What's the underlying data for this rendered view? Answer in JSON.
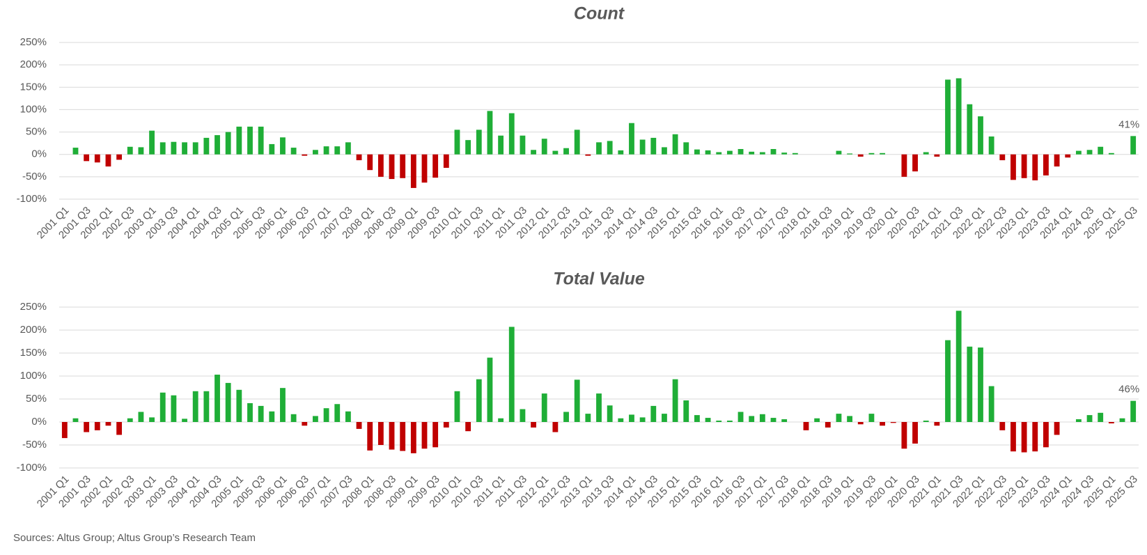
{
  "chart_data": [
    {
      "type": "bar",
      "title": "Count",
      "categories": [
        "2001 Q1",
        null,
        "2001 Q3",
        null,
        "2002 Q1",
        null,
        "2002 Q3",
        null,
        "2003 Q1",
        null,
        "2003 Q3",
        null,
        "2004 Q1",
        null,
        "2004 Q3",
        null,
        "2005 Q1",
        null,
        "2005 Q3",
        null,
        "2006 Q1",
        null,
        "2006 Q3",
        null,
        "2007 Q1",
        null,
        "2007 Q3",
        null,
        "2008 Q1",
        null,
        "2008 Q3",
        null,
        "2009 Q1",
        null,
        "2009 Q3",
        null,
        "2010 Q1",
        null,
        "2010 Q3",
        null,
        "2011 Q1",
        null,
        "2011 Q3",
        null,
        "2012 Q1",
        null,
        "2012 Q3",
        null,
        "2013 Q1",
        null,
        "2013 Q3",
        null,
        "2014 Q1",
        null,
        "2014 Q3",
        null,
        "2015 Q1",
        null,
        "2015 Q3",
        null,
        "2016 Q1",
        null,
        "2016 Q3",
        null,
        "2017 Q1",
        null,
        "2017 Q3",
        null,
        "2018 Q1",
        null,
        "2018 Q3",
        null,
        "2019 Q1",
        null,
        "2019 Q3",
        null,
        "2020 Q1",
        null,
        "2020 Q3",
        null,
        "2021 Q1",
        null,
        "2021 Q3",
        null,
        "2022 Q1",
        null,
        "2022 Q3",
        null,
        "2023 Q1",
        null,
        "2023 Q3",
        null,
        "2024 Q1",
        null,
        "2024 Q3",
        null,
        "2025 Q1",
        null,
        "2025 Q3"
      ],
      "values": [
        0,
        15,
        -15,
        -18,
        -27,
        -12,
        17,
        16,
        53,
        27,
        28,
        27,
        27,
        37,
        43,
        50,
        62,
        62,
        62,
        23,
        38,
        15,
        -3,
        10,
        18,
        18,
        27,
        -13,
        -35,
        -50,
        -55,
        -53,
        -75,
        -63,
        -52,
        -30,
        55,
        32,
        55,
        97,
        42,
        92,
        42,
        10,
        35,
        8,
        14,
        55,
        -3,
        27,
        30,
        9,
        70,
        33,
        37,
        16,
        45,
        27,
        11,
        9,
        5,
        8,
        12,
        6,
        5,
        12,
        4,
        3,
        0,
        0,
        0,
        8,
        2,
        -5,
        3,
        3,
        0,
        -50,
        -38,
        5,
        -5,
        167,
        170,
        112,
        85,
        40,
        -13,
        -57,
        -53,
        -58,
        -47,
        -27,
        -7,
        8,
        10,
        17,
        3,
        0,
        41
      ],
      "value_labels": [
        null,
        null,
        null,
        null,
        null,
        null,
        null,
        null,
        null,
        null,
        null,
        null,
        null,
        null,
        null,
        null,
        null,
        null,
        null,
        null,
        null,
        null,
        null,
        null,
        null,
        null,
        null,
        null,
        null,
        null,
        null,
        null,
        null,
        null,
        null,
        null,
        null,
        null,
        null,
        null,
        null,
        null,
        null,
        null,
        null,
        null,
        null,
        null,
        null,
        null,
        null,
        null,
        null,
        null,
        null,
        null,
        null,
        null,
        null,
        null,
        null,
        null,
        null,
        null,
        null,
        null,
        null,
        null,
        null,
        null,
        null,
        null,
        null,
        null,
        null,
        null,
        null,
        null,
        null,
        null,
        null,
        null,
        null,
        null,
        null,
        null,
        null,
        null,
        null,
        null,
        null,
        null,
        null,
        null,
        null,
        null,
        null,
        null,
        "41%"
      ],
      "positive_color": "#1fae37",
      "negative_color": "#c00000",
      "ylim": [
        -100,
        250
      ],
      "yticks": [
        {
          "value": -100,
          "label": "-100%"
        },
        {
          "value": -50,
          "label": "-50%"
        },
        {
          "value": 0,
          "label": "0%"
        },
        {
          "value": 50,
          "label": "50%"
        },
        {
          "value": 100,
          "label": "100%"
        },
        {
          "value": 150,
          "label": "150%"
        },
        {
          "value": 200,
          "label": "200%"
        },
        {
          "value": 250,
          "label": "250%"
        }
      ],
      "grid": true
    },
    {
      "type": "bar",
      "title": "Total Value",
      "categories": [
        "2001 Q1",
        null,
        "2001 Q3",
        null,
        "2002 Q1",
        null,
        "2002 Q3",
        null,
        "2003 Q1",
        null,
        "2003 Q3",
        null,
        "2004 Q1",
        null,
        "2004 Q3",
        null,
        "2005 Q1",
        null,
        "2005 Q3",
        null,
        "2006 Q1",
        null,
        "2006 Q3",
        null,
        "2007 Q1",
        null,
        "2007 Q3",
        null,
        "2008 Q1",
        null,
        "2008 Q3",
        null,
        "2009 Q1",
        null,
        "2009 Q3",
        null,
        "2010 Q1",
        null,
        "2010 Q3",
        null,
        "2011 Q1",
        null,
        "2011 Q3",
        null,
        "2012 Q1",
        null,
        "2012 Q3",
        null,
        "2013 Q1",
        null,
        "2013 Q3",
        null,
        "2014 Q1",
        null,
        "2014 Q3",
        null,
        "2015 Q1",
        null,
        "2015 Q3",
        null,
        "2016 Q1",
        null,
        "2016 Q3",
        null,
        "2017 Q1",
        null,
        "2017 Q3",
        null,
        "2018 Q1",
        null,
        "2018 Q3",
        null,
        "2019 Q1",
        null,
        "2019 Q3",
        null,
        "2020 Q1",
        null,
        "2020 Q3",
        null,
        "2021 Q1",
        null,
        "2021 Q3",
        null,
        "2022 Q1",
        null,
        "2022 Q3",
        null,
        "2023 Q1",
        null,
        "2023 Q3",
        null,
        "2024 Q1",
        null,
        "2024 Q3",
        null,
        "2025 Q1",
        null,
        "2025 Q3"
      ],
      "values": [
        -35,
        8,
        -22,
        -18,
        -8,
        -28,
        8,
        22,
        10,
        64,
        58,
        7,
        67,
        67,
        103,
        85,
        70,
        41,
        35,
        23,
        74,
        17,
        -8,
        13,
        30,
        39,
        23,
        -15,
        -62,
        -50,
        -60,
        -63,
        -68,
        -58,
        -55,
        -12,
        67,
        -20,
        93,
        140,
        8,
        207,
        28,
        -12,
        62,
        -22,
        22,
        92,
        18,
        62,
        36,
        8,
        16,
        10,
        35,
        18,
        93,
        47,
        15,
        9,
        3,
        3,
        22,
        13,
        17,
        9,
        6,
        0,
        -18,
        8,
        -12,
        18,
        13,
        -5,
        18,
        -8,
        -2,
        -58,
        -47,
        3,
        -8,
        178,
        242,
        164,
        162,
        78,
        -18,
        -64,
        -66,
        -64,
        -55,
        -28,
        0,
        6,
        15,
        20,
        -3,
        8,
        46
      ],
      "value_labels": [
        null,
        null,
        null,
        null,
        null,
        null,
        null,
        null,
        null,
        null,
        null,
        null,
        null,
        null,
        null,
        null,
        null,
        null,
        null,
        null,
        null,
        null,
        null,
        null,
        null,
        null,
        null,
        null,
        null,
        null,
        null,
        null,
        null,
        null,
        null,
        null,
        null,
        null,
        null,
        null,
        null,
        null,
        null,
        null,
        null,
        null,
        null,
        null,
        null,
        null,
        null,
        null,
        null,
        null,
        null,
        null,
        null,
        null,
        null,
        null,
        null,
        null,
        null,
        null,
        null,
        null,
        null,
        null,
        null,
        null,
        null,
        null,
        null,
        null,
        null,
        null,
        null,
        null,
        null,
        null,
        null,
        null,
        null,
        null,
        null,
        null,
        null,
        null,
        null,
        null,
        null,
        null,
        null,
        null,
        null,
        null,
        null,
        null,
        "46%"
      ],
      "positive_color": "#1fae37",
      "negative_color": "#c00000",
      "ylim": [
        -100,
        250
      ],
      "yticks": [
        {
          "value": -100,
          "label": "-100%"
        },
        {
          "value": -50,
          "label": "-50%"
        },
        {
          "value": 0,
          "label": "0%"
        },
        {
          "value": 50,
          "label": "50%"
        },
        {
          "value": 100,
          "label": "100%"
        },
        {
          "value": 150,
          "label": "150%"
        },
        {
          "value": 200,
          "label": "200%"
        },
        {
          "value": 250,
          "label": "250%"
        }
      ],
      "grid": true
    }
  ],
  "source": "Sources: Altus Group; Altus Group’s Research Team"
}
